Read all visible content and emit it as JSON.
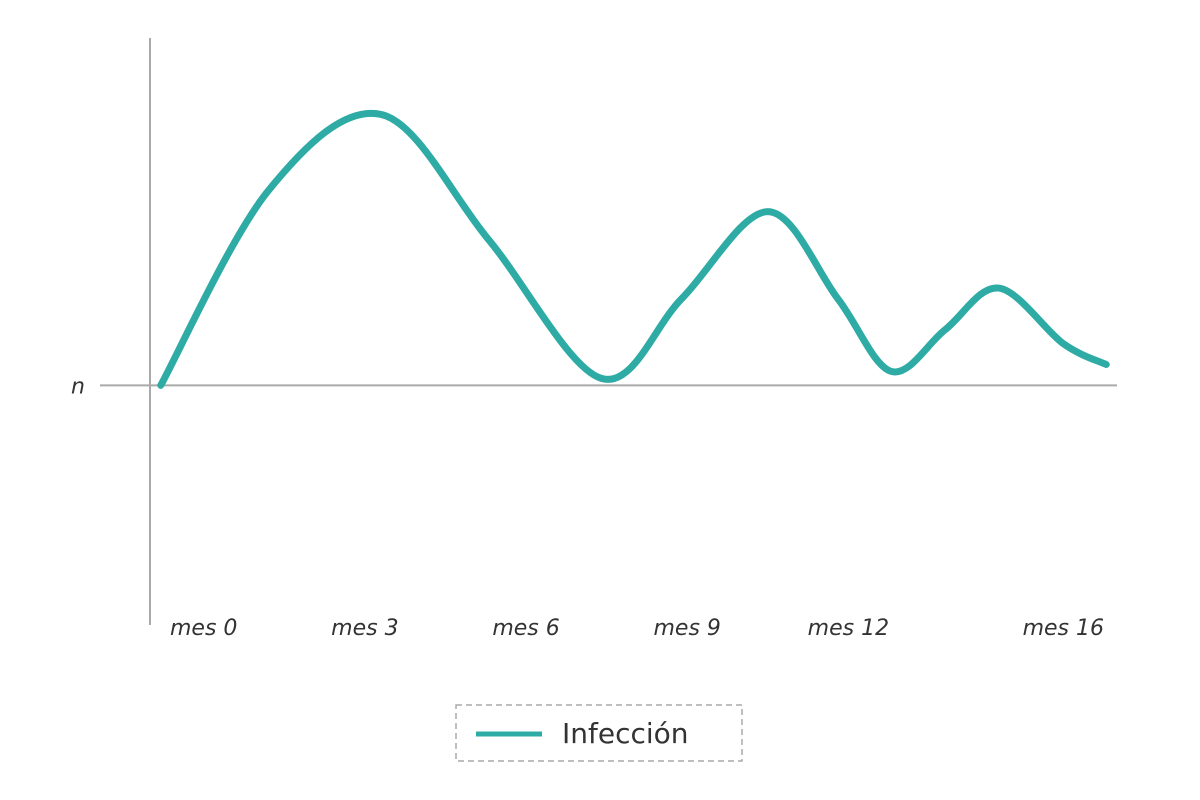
{
  "chart_data": {
    "type": "line",
    "x": [
      -0.8,
      1.2,
      3.3,
      5.3,
      7.4,
      8.9,
      10.5,
      11.8,
      12.8,
      13.8,
      14.8,
      16.0,
      16.8
    ],
    "series": [
      {
        "name": "Infección",
        "color": "#2eaba4",
        "values": [
          0,
          56,
          78,
          42,
          2,
          25,
          50,
          25,
          4,
          16,
          28,
          12,
          6
        ]
      }
    ],
    "xlim": [
      -1,
      17
    ],
    "xticks": [
      {
        "value": 0,
        "label": "mes 0"
      },
      {
        "value": 3,
        "label": "mes 3"
      },
      {
        "value": 6,
        "label": "mes 6"
      },
      {
        "value": 9,
        "label": "mes 9"
      },
      {
        "value": 12,
        "label": "mes 12"
      },
      {
        "value": 16,
        "label": "mes 16"
      }
    ],
    "ylim": [
      -69,
      100
    ],
    "yticks": [
      {
        "value": 0,
        "label": "n"
      }
    ],
    "legend": "bottom"
  }
}
